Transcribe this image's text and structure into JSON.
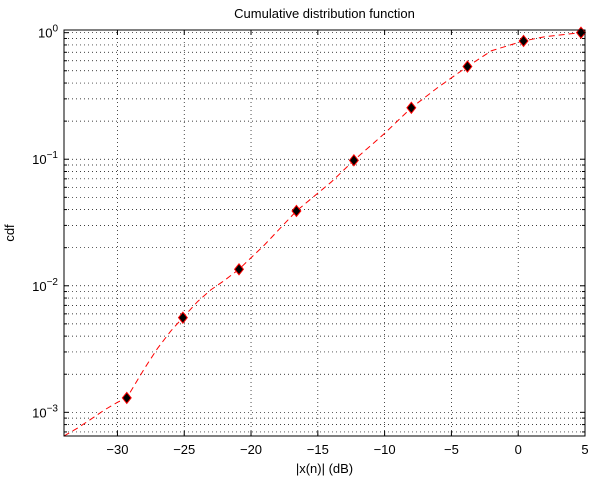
{
  "chart_data": {
    "type": "line",
    "title": "Cumulative distribution function",
    "xlabel": "|x(n)| (dB)",
    "ylabel": "cdf",
    "xlim": [
      -34,
      5
    ],
    "ylim": [
      0.00065,
      1.05
    ],
    "yscale": "log",
    "grid": true,
    "grid_style": "dotted",
    "x_ticks": [
      -30,
      -25,
      -20,
      -15,
      -10,
      -5,
      0,
      5
    ],
    "x_tick_labels": [
      "−30",
      "−25",
      "−20",
      "−15",
      "−10",
      "−5",
      "0",
      "5"
    ],
    "y_ticks": [
      0.001,
      0.01,
      0.1,
      1
    ],
    "y_tick_labels": [
      {
        "base": "10",
        "exp": "−3"
      },
      {
        "base": "10",
        "exp": "−2"
      },
      {
        "base": "10",
        "exp": "−1"
      },
      {
        "base": "10",
        "exp": "0"
      }
    ],
    "series": [
      {
        "style": "dashed-line",
        "color": "#ff0000",
        "x": [
          -34,
          -33,
          -32,
          -31,
          -30,
          -29.3,
          -28,
          -27,
          -26,
          -25.1,
          -24,
          -23,
          -22,
          -20.9,
          -19,
          -16.6,
          -14,
          -12.3,
          -10,
          -8,
          -6,
          -3.8,
          -2,
          0.4,
          2,
          4.7
        ],
        "y": [
          0.00065,
          0.00075,
          0.00088,
          0.00104,
          0.0012,
          0.0013,
          0.0022,
          0.0032,
          0.0044,
          0.0056,
          0.0075,
          0.0093,
          0.011,
          0.0135,
          0.021,
          0.039,
          0.066,
          0.098,
          0.16,
          0.255,
          0.37,
          0.54,
          0.72,
          0.86,
          0.93,
          1.0
        ]
      },
      {
        "style": "diamond-markers",
        "color": "#000000",
        "edge_color": "#ff0000",
        "x": [
          -29.3,
          -25.1,
          -20.9,
          -16.6,
          -12.3,
          -8.0,
          -3.8,
          0.4,
          4.7
        ],
        "y": [
          0.0013,
          0.0056,
          0.0135,
          0.039,
          0.098,
          0.255,
          0.54,
          0.86,
          1.0
        ]
      }
    ]
  }
}
